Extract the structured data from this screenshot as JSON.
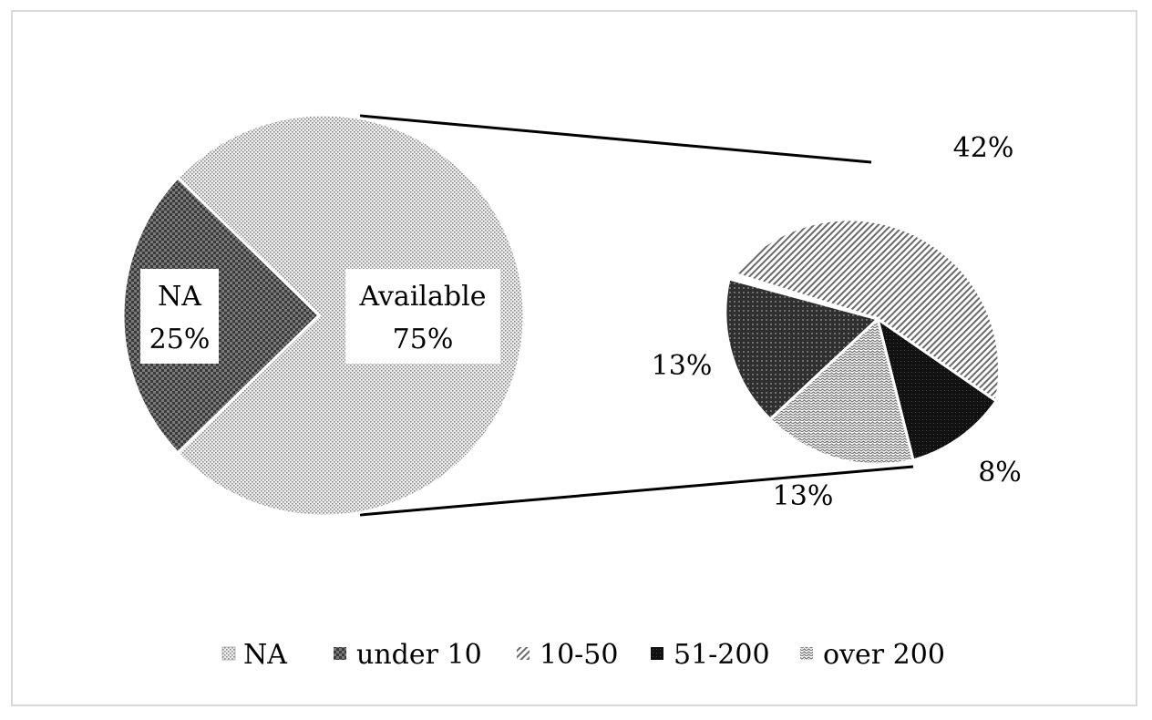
{
  "chart_data": {
    "type": "pie",
    "subtype": "pie-of-pie",
    "main_pie": {
      "slices": [
        {
          "name": "NA",
          "label": "NA",
          "percent_label": "25%",
          "value": 25
        },
        {
          "name": "Available",
          "label": "Available",
          "percent_label": "75%",
          "value": 75
        }
      ]
    },
    "secondary_pie": {
      "explodes": "Available",
      "slices": [
        {
          "name": "under 10",
          "percent_label": "13%",
          "value": 13
        },
        {
          "name": "10-50",
          "percent_label": "13%",
          "value": 13
        },
        {
          "name": "51-200",
          "percent_label": "8%",
          "value": 8
        },
        {
          "name": "over 200",
          "percent_label": "42%",
          "value": 42
        }
      ]
    },
    "legend": {
      "placement": "bottom",
      "entries": [
        "NA",
        "under 10",
        "10-50",
        "51-200",
        "over 200"
      ]
    },
    "colors": {
      "NA": "#7a7a7a",
      "Available": "#d6d6d6",
      "under 10": "#555555",
      "10-50": "#c8c8c8",
      "51-200": "#111111",
      "over 200": "#9a9a9a",
      "connector": "#000000"
    }
  }
}
